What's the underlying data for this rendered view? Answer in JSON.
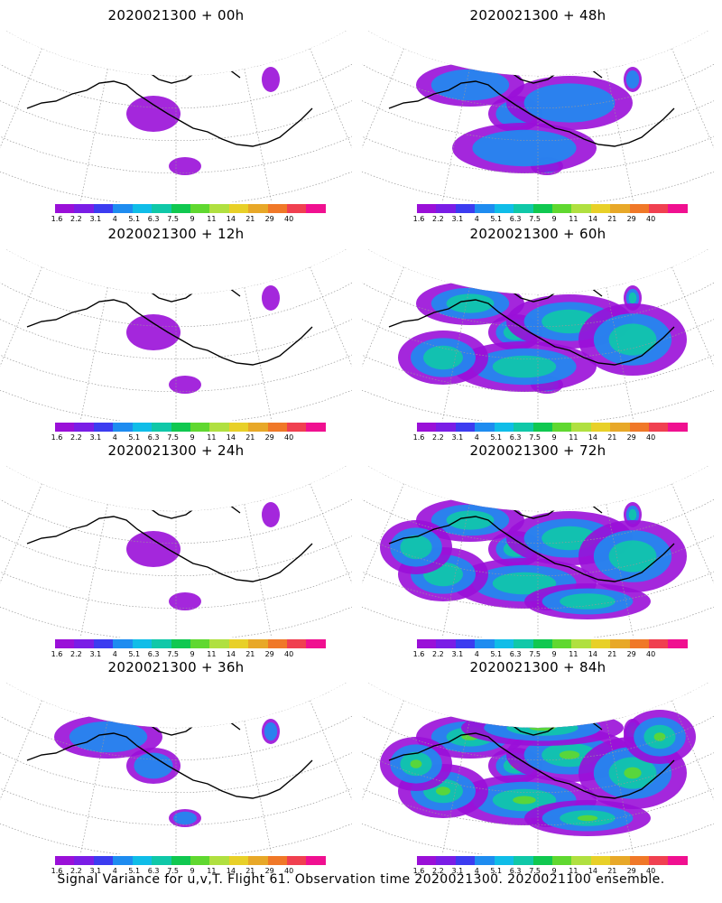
{
  "panels": [
    {
      "title": "2020021300 + 00h",
      "level": 0
    },
    {
      "title": "2020021300 + 48h",
      "level": 3
    },
    {
      "title": "2020021300 + 12h",
      "level": 1
    },
    {
      "title": "2020021300 + 60h",
      "level": 4
    },
    {
      "title": "2020021300 + 24h",
      "level": 1
    },
    {
      "title": "2020021300 + 72h",
      "level": 5
    },
    {
      "title": "2020021300 + 36h",
      "level": 2
    },
    {
      "title": "2020021300 + 84h",
      "level": 6
    }
  ],
  "colorbar": {
    "labels": [
      "1.6",
      "2.2",
      "3.1",
      "4",
      "5.1",
      "6.3",
      "7.5",
      "9",
      "11",
      "14",
      "21",
      "29",
      "40"
    ],
    "colors": [
      "#9a10d8",
      "#7a1de6",
      "#3c3cf0",
      "#1e8cf0",
      "#10bde8",
      "#10c8a8",
      "#10c850",
      "#60d830",
      "#b0e040",
      "#e8d028",
      "#e8a828",
      "#f07828",
      "#f04050",
      "#f01090"
    ]
  },
  "caption": "Signal Variance for u,v,T. Flight 61. Observation time 2020021300. 2020021100 ensemble."
}
